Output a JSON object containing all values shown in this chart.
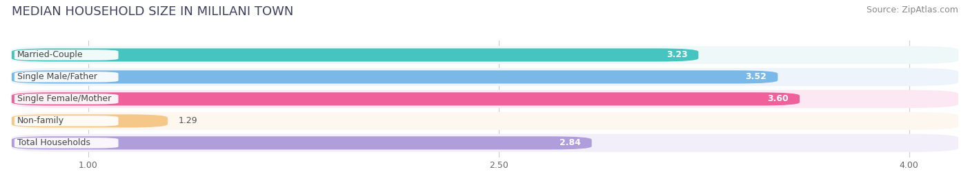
{
  "title": "MEDIAN HOUSEHOLD SIZE IN MILILANI TOWN",
  "source": "Source: ZipAtlas.com",
  "categories": [
    "Married-Couple",
    "Single Male/Father",
    "Single Female/Mother",
    "Non-family",
    "Total Households"
  ],
  "values": [
    3.23,
    3.52,
    3.6,
    1.29,
    2.84
  ],
  "bar_colors": [
    "#45c4c0",
    "#7ab8e8",
    "#f0609a",
    "#f5c88a",
    "#b09ddb"
  ],
  "bar_bg_colors": [
    "#eff8f8",
    "#eef4fc",
    "#fce8f2",
    "#fdf7f0",
    "#f2eefa"
  ],
  "xlim_left": 0.72,
  "xlim_right": 4.18,
  "data_min": 1.0,
  "xticks": [
    1.0,
    2.5,
    4.0
  ],
  "value_label_color": "#ffffff",
  "title_fontsize": 13,
  "source_fontsize": 9,
  "label_fontsize": 9,
  "value_fontsize": 9,
  "tick_fontsize": 9
}
